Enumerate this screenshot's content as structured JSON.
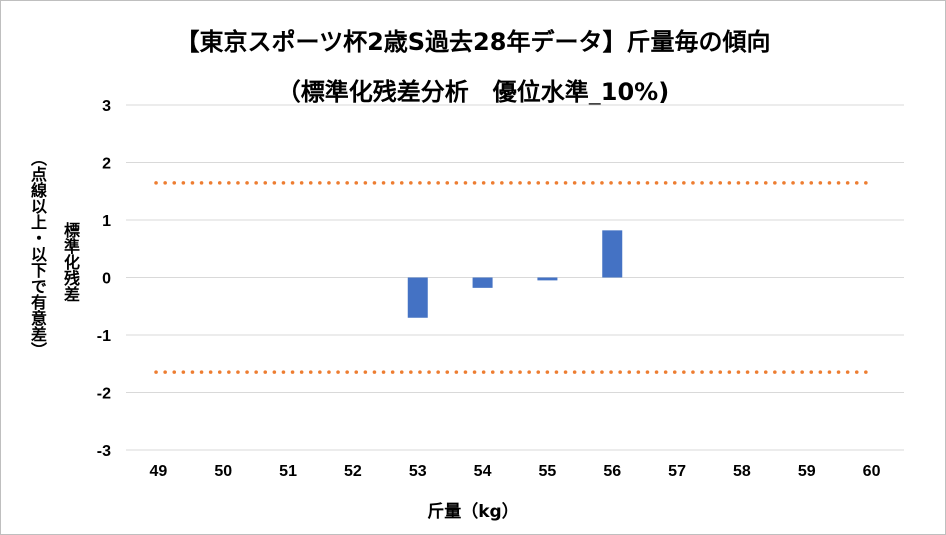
{
  "chart_data": {
    "type": "bar",
    "title_lines": [
      "【東京スポーツ杯2歳S過去28年データ】斤量毎の傾向",
      "（標準化残差分析　優位水準_10%)"
    ],
    "xlabel": "斤量（kg）",
    "ylabel_lines": [
      "標準化残差",
      "（点線以上・以下で有意差）"
    ],
    "categories": [
      "49",
      "50",
      "51",
      "52",
      "53",
      "54",
      "55",
      "56",
      "57",
      "58",
      "59",
      "60"
    ],
    "values": [
      null,
      null,
      null,
      null,
      -0.7,
      -0.18,
      -0.05,
      0.82,
      null,
      null,
      null,
      null
    ],
    "ylim": [
      -3,
      3
    ],
    "yticks": [
      3,
      2,
      1,
      0,
      -1,
      -2,
      -3
    ],
    "threshold_lines": [
      1.645,
      -1.645
    ],
    "grid": true,
    "legend": "none",
    "colors": {
      "bar": "#4472c4",
      "threshold": "#ed7d31",
      "grid": "#d9d9d9"
    }
  }
}
